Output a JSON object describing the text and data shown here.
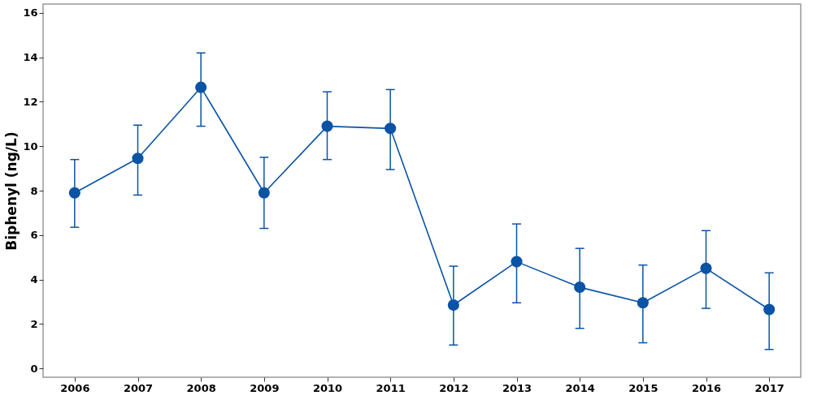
{
  "chart_data": {
    "type": "line",
    "ylabel": "Biphenyl (ng/L)",
    "categories": [
      "2006",
      "2007",
      "2008",
      "2009",
      "2010",
      "2011",
      "2012",
      "2013",
      "2014",
      "2015",
      "2016",
      "2017"
    ],
    "series": [
      {
        "color": "#0b53a5",
        "values": [
          7.9,
          9.45,
          12.65,
          7.9,
          10.9,
          10.8,
          2.85,
          4.8,
          3.65,
          2.95,
          4.5,
          2.65
        ],
        "errors": [
          [
            6.35,
            9.4
          ],
          [
            7.8,
            10.95
          ],
          [
            10.9,
            14.2
          ],
          [
            6.3,
            9.5
          ],
          [
            9.4,
            12.45
          ],
          [
            8.95,
            12.55
          ],
          [
            1.05,
            4.6
          ],
          [
            2.95,
            6.5
          ],
          [
            1.8,
            5.4
          ],
          [
            1.15,
            4.65
          ],
          [
            2.7,
            6.2
          ],
          [
            0.85,
            4.3
          ]
        ]
      }
    ],
    "ylim": [
      -0.4,
      16.4
    ],
    "yticks": [
      0,
      2,
      4,
      6,
      8,
      10,
      12,
      14,
      16
    ],
    "grid": false,
    "marker": "circle",
    "line_style": "solid"
  }
}
